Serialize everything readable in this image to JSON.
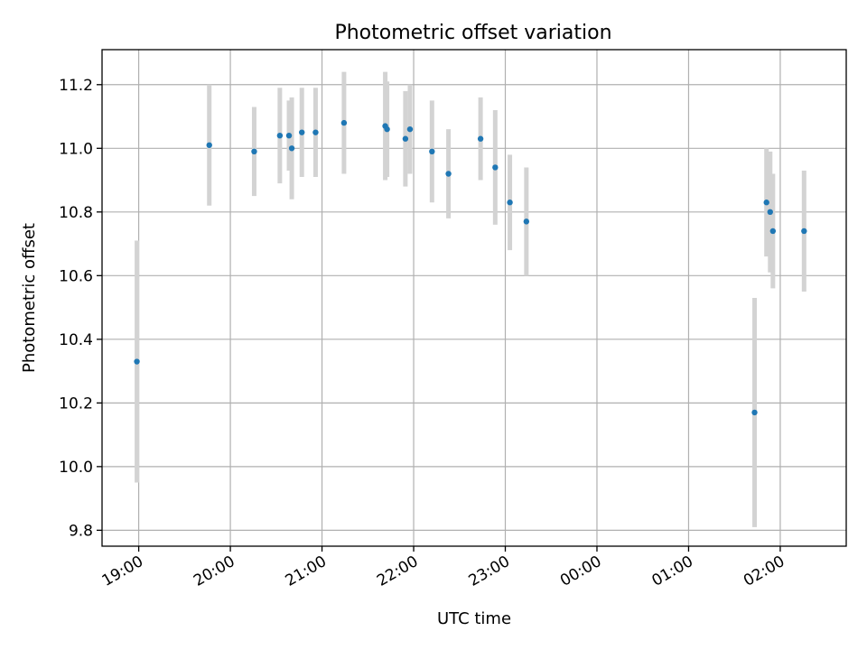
{
  "chart_data": {
    "type": "scatter",
    "title": "Photometric offset variation",
    "xlabel": "UTC time",
    "ylabel": "Photometric offset",
    "x_unit": "hours since 18:00 UTC",
    "xlim": [
      0.6,
      8.72
    ],
    "ylim": [
      9.75,
      11.31
    ],
    "grid": true,
    "x_ticks": [
      {
        "value": 1,
        "label": "19:00"
      },
      {
        "value": 2,
        "label": "20:00"
      },
      {
        "value": 3,
        "label": "21:00"
      },
      {
        "value": 4,
        "label": "22:00"
      },
      {
        "value": 5,
        "label": "23:00"
      },
      {
        "value": 6,
        "label": "00:00"
      },
      {
        "value": 7,
        "label": "01:00"
      },
      {
        "value": 8,
        "label": "02:00"
      }
    ],
    "y_ticks": [
      {
        "value": 9.8,
        "label": "9.8"
      },
      {
        "value": 10.0,
        "label": "10.0"
      },
      {
        "value": 10.2,
        "label": "10.2"
      },
      {
        "value": 10.4,
        "label": "10.4"
      },
      {
        "value": 10.6,
        "label": "10.6"
      },
      {
        "value": 10.8,
        "label": "10.8"
      },
      {
        "value": 11.0,
        "label": "11.0"
      },
      {
        "value": 11.2,
        "label": "11.2"
      }
    ],
    "series": [
      {
        "name": "offset",
        "color": "#1f77b4",
        "errorbar_color": "#d3d3d3",
        "points": [
          {
            "x": 0.98,
            "y": 10.33,
            "err": 0.38
          },
          {
            "x": 1.77,
            "y": 11.01,
            "err": 0.19
          },
          {
            "x": 2.26,
            "y": 10.99,
            "err": 0.14
          },
          {
            "x": 2.54,
            "y": 11.04,
            "err": 0.15
          },
          {
            "x": 2.64,
            "y": 11.04,
            "err": 0.11
          },
          {
            "x": 2.67,
            "y": 11.0,
            "err": 0.16
          },
          {
            "x": 2.78,
            "y": 11.05,
            "err": 0.14
          },
          {
            "x": 2.93,
            "y": 11.05,
            "err": 0.14
          },
          {
            "x": 3.24,
            "y": 11.08,
            "err": 0.16
          },
          {
            "x": 3.69,
            "y": 11.07,
            "err": 0.17
          },
          {
            "x": 3.71,
            "y": 11.06,
            "err": 0.15
          },
          {
            "x": 3.91,
            "y": 11.03,
            "err": 0.15
          },
          {
            "x": 3.96,
            "y": 11.06,
            "err": 0.14
          },
          {
            "x": 4.2,
            "y": 10.99,
            "err": 0.16
          },
          {
            "x": 4.38,
            "y": 10.92,
            "err": 0.14
          },
          {
            "x": 4.73,
            "y": 11.03,
            "err": 0.13
          },
          {
            "x": 4.89,
            "y": 10.94,
            "err": 0.18
          },
          {
            "x": 5.05,
            "y": 10.83,
            "err": 0.15
          },
          {
            "x": 5.23,
            "y": 10.77,
            "err": 0.17
          },
          {
            "x": 7.72,
            "y": 10.17,
            "err": 0.36
          },
          {
            "x": 7.85,
            "y": 10.83,
            "err": 0.17
          },
          {
            "x": 7.89,
            "y": 10.8,
            "err": 0.19
          },
          {
            "x": 7.92,
            "y": 10.74,
            "err": 0.18
          },
          {
            "x": 8.26,
            "y": 10.74,
            "err": 0.19
          }
        ]
      }
    ]
  }
}
